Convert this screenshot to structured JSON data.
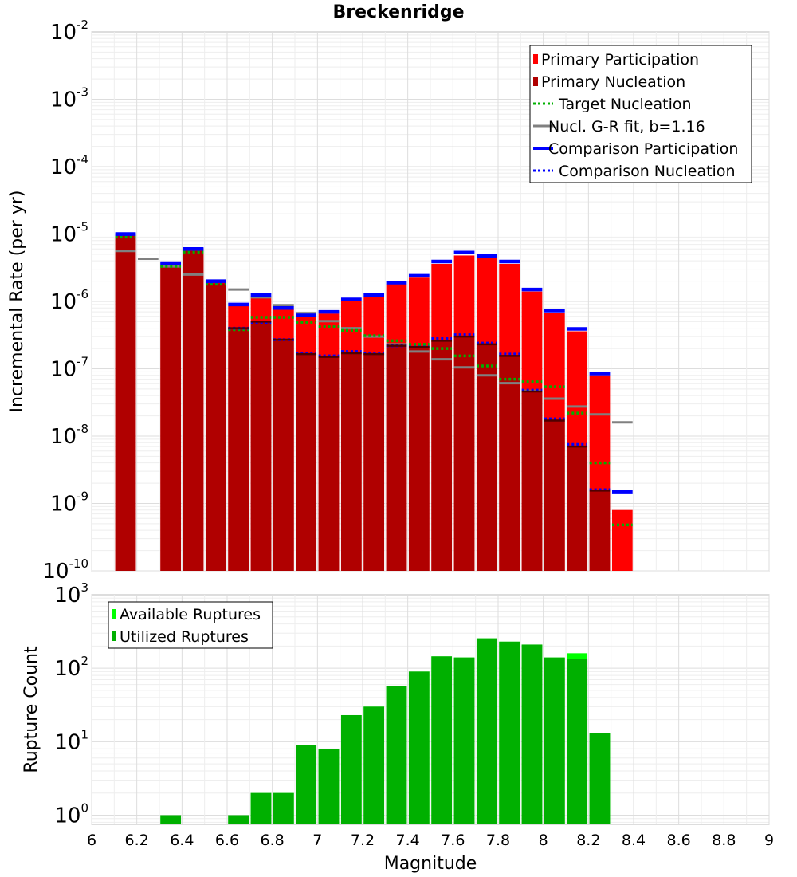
{
  "chart_data": [
    {
      "type": "bar",
      "title": "Breckenridge",
      "ylabel": "Incremental Rate (per yr)",
      "xlabel": "",
      "yscale": "log",
      "ylim": [
        1e-10,
        0.01
      ],
      "xlim": [
        6.0,
        9.0
      ],
      "grid": true,
      "bin_width": 0.1,
      "y_tick_labels": [
        {
          "value": 1e-10,
          "base": "10",
          "exp": "-10"
        },
        {
          "value": 1e-09,
          "base": "10",
          "exp": "-9"
        },
        {
          "value": 1e-08,
          "base": "10",
          "exp": "-8"
        },
        {
          "value": 1e-07,
          "base": "10",
          "exp": "-7"
        },
        {
          "value": 1e-06,
          "base": "10",
          "exp": "-6"
        },
        {
          "value": 1e-05,
          "base": "10",
          "exp": "-5"
        },
        {
          "value": 0.0001,
          "base": "10",
          "exp": "-4"
        },
        {
          "value": 0.001,
          "base": "10",
          "exp": "-3"
        },
        {
          "value": 0.01,
          "base": "10",
          "exp": "-2"
        }
      ],
      "legend": {
        "placement": "top-right",
        "entries": [
          {
            "label": "Primary Participation",
            "color": "#ff0000",
            "style": "bar"
          },
          {
            "label": "Primary Nucleation",
            "color": "#b00000",
            "style": "bar"
          },
          {
            "label": "Target Nucleation",
            "color": "#00b000",
            "style": "dotted"
          },
          {
            "label": "Nucl. G-R fit, b=1.16",
            "color": "#808080",
            "style": "solid"
          },
          {
            "label": "Comparison Participation",
            "color": "#0000ff",
            "style": "thick"
          },
          {
            "label": "Comparison Nucleation",
            "color": "#0000ff",
            "style": "dotted"
          }
        ]
      },
      "series": [
        {
          "name": "Primary Participation",
          "color": "#ff0000",
          "points": [
            [
              6.15,
              9.5e-06
            ],
            [
              6.35,
              3.5e-06
            ],
            [
              6.45,
              5.8e-06
            ],
            [
              6.55,
              1.9e-06
            ],
            [
              6.65,
              8.5e-07
            ],
            [
              6.75,
              1.15e-06
            ],
            [
              6.85,
              7.6e-07
            ],
            [
              6.95,
              5.8e-07
            ],
            [
              7.05,
              6.6e-07
            ],
            [
              7.15,
              1e-06
            ],
            [
              7.25,
              1.18e-06
            ],
            [
              7.35,
              1.8e-06
            ],
            [
              7.45,
              2.25e-06
            ],
            [
              7.55,
              3.6e-06
            ],
            [
              7.65,
              4.8e-06
            ],
            [
              7.75,
              4.4e-06
            ],
            [
              7.85,
              3.6e-06
            ],
            [
              7.95,
              1.4e-06
            ],
            [
              8.05,
              6.8e-07
            ],
            [
              8.15,
              3.6e-07
            ],
            [
              8.25,
              8e-08
            ],
            [
              8.35,
              8e-10
            ]
          ]
        },
        {
          "name": "Primary Nucleation",
          "color": "#b00000",
          "points": [
            [
              6.15,
              9.5e-06
            ],
            [
              6.35,
              3.4e-06
            ],
            [
              6.45,
              5.6e-06
            ],
            [
              6.55,
              1.85e-06
            ],
            [
              6.65,
              4e-07
            ],
            [
              6.75,
              5e-07
            ],
            [
              6.85,
              2.7e-07
            ],
            [
              6.95,
              1.65e-07
            ],
            [
              7.05,
              1.5e-07
            ],
            [
              7.15,
              1.7e-07
            ],
            [
              7.25,
              1.65e-07
            ],
            [
              7.35,
              2.2e-07
            ],
            [
              7.45,
              2.1e-07
            ],
            [
              7.55,
              2.6e-07
            ],
            [
              7.65,
              3e-07
            ],
            [
              7.75,
              2.3e-07
            ],
            [
              7.85,
              1.55e-07
            ],
            [
              7.95,
              4.6e-08
            ],
            [
              8.05,
              1.7e-08
            ],
            [
              8.15,
              7e-09
            ],
            [
              8.25,
              1.55e-09
            ]
          ]
        },
        {
          "name": "Target Nucleation",
          "color": "#00b000",
          "points": [
            [
              6.15,
              9e-06
            ],
            [
              6.35,
              3.3e-06
            ],
            [
              6.45,
              5.4e-06
            ],
            [
              6.55,
              1.8e-06
            ],
            [
              6.65,
              3.8e-07
            ],
            [
              6.75,
              5.8e-07
            ],
            [
              6.85,
              5.8e-07
            ],
            [
              6.95,
              4.9e-07
            ],
            [
              7.05,
              4.2e-07
            ],
            [
              7.15,
              3.7e-07
            ],
            [
              7.25,
              3.1e-07
            ],
            [
              7.35,
              2.6e-07
            ],
            [
              7.45,
              2.3e-07
            ],
            [
              7.55,
              2e-07
            ],
            [
              7.65,
              1.55e-07
            ],
            [
              7.75,
              1.1e-07
            ],
            [
              7.85,
              7e-08
            ],
            [
              7.95,
              6.4e-08
            ],
            [
              8.05,
              5.4e-08
            ],
            [
              8.15,
              2.2e-08
            ],
            [
              8.25,
              4e-09
            ],
            [
              8.35,
              4.8e-10
            ]
          ]
        },
        {
          "name": "Nucl. G-R fit, b=1.16",
          "color": "#808080",
          "points": [
            [
              6.15,
              5.6e-06
            ],
            [
              6.25,
              4.3e-06
            ],
            [
              6.35,
              3.3e-06
            ],
            [
              6.45,
              2.5e-06
            ],
            [
              6.55,
              2e-06
            ],
            [
              6.65,
              1.5e-06
            ],
            [
              6.75,
              1.15e-06
            ],
            [
              6.85,
              8.8e-07
            ],
            [
              6.95,
              6.7e-07
            ],
            [
              7.05,
              5.1e-07
            ],
            [
              7.15,
              4e-07
            ],
            [
              7.25,
              3e-07
            ],
            [
              7.35,
              2.3e-07
            ],
            [
              7.45,
              1.8e-07
            ],
            [
              7.55,
              1.38e-07
            ],
            [
              7.65,
              1.05e-07
            ],
            [
              7.75,
              8e-08
            ],
            [
              7.85,
              6.1e-08
            ],
            [
              7.95,
              4.7e-08
            ],
            [
              8.05,
              3.6e-08
            ],
            [
              8.15,
              2.75e-08
            ],
            [
              8.25,
              2.1e-08
            ],
            [
              8.35,
              1.6e-08
            ]
          ]
        },
        {
          "name": "Comparison Participation",
          "color": "#0000ff",
          "points": [
            [
              6.15,
              1e-05
            ],
            [
              6.35,
              3.7e-06
            ],
            [
              6.45,
              6e-06
            ],
            [
              6.55,
              2e-06
            ],
            [
              6.65,
              9e-07
            ],
            [
              6.75,
              1.25e-06
            ],
            [
              6.85,
              8e-07
            ],
            [
              6.95,
              6.2e-07
            ],
            [
              7.05,
              7e-07
            ],
            [
              7.15,
              1.07e-06
            ],
            [
              7.25,
              1.25e-06
            ],
            [
              7.35,
              1.9e-06
            ],
            [
              7.45,
              2.4e-06
            ],
            [
              7.55,
              3.9e-06
            ],
            [
              7.65,
              5.3e-06
            ],
            [
              7.75,
              4.7e-06
            ],
            [
              7.85,
              3.9e-06
            ],
            [
              7.95,
              1.5e-06
            ],
            [
              8.05,
              7.3e-07
            ],
            [
              8.15,
              3.9e-07
            ],
            [
              8.25,
              8.5e-08
            ],
            [
              8.35,
              1.5e-09
            ]
          ]
        },
        {
          "name": "Comparison Nucleation",
          "color": "#0000ff",
          "points": [
            [
              6.15,
              9.8e-06
            ],
            [
              6.35,
              3.6e-06
            ],
            [
              6.45,
              5.9e-06
            ],
            [
              6.55,
              1.95e-06
            ],
            [
              6.65,
              4e-07
            ],
            [
              6.75,
              4.8e-07
            ],
            [
              6.85,
              2.7e-07
            ],
            [
              6.95,
              1.7e-07
            ],
            [
              7.05,
              1.55e-07
            ],
            [
              7.15,
              1.8e-07
            ],
            [
              7.25,
              1.7e-07
            ],
            [
              7.35,
              2.2e-07
            ],
            [
              7.45,
              2.1e-07
            ],
            [
              7.55,
              2.8e-07
            ],
            [
              7.65,
              3.2e-07
            ],
            [
              7.75,
              2.4e-07
            ],
            [
              7.85,
              1.65e-07
            ],
            [
              7.95,
              4.8e-08
            ],
            [
              8.05,
              1.8e-08
            ],
            [
              8.15,
              7.5e-09
            ],
            [
              8.25,
              1.6e-09
            ]
          ]
        }
      ]
    },
    {
      "type": "bar",
      "title": "",
      "ylabel": "Rupture Count",
      "xlabel": "Magnitude",
      "yscale": "log",
      "ylim": [
        0.75,
        1000
      ],
      "xlim": [
        6.0,
        9.0
      ],
      "grid": true,
      "bin_width": 0.1,
      "y_tick_labels": [
        {
          "value": 1,
          "base": "10",
          "exp": "0"
        },
        {
          "value": 10,
          "base": "10",
          "exp": "1"
        },
        {
          "value": 100,
          "base": "10",
          "exp": "2"
        },
        {
          "value": 1000,
          "base": "10",
          "exp": "3"
        }
      ],
      "x_tick_labels": [
        "6",
        "6.2",
        "6.4",
        "6.6",
        "6.8",
        "7",
        "7.2",
        "7.4",
        "7.6",
        "7.8",
        "8",
        "8.2",
        "8.4",
        "8.6",
        "8.8",
        "9"
      ],
      "x_tick_values": [
        6.0,
        6.2,
        6.4,
        6.6,
        6.8,
        7.0,
        7.2,
        7.4,
        7.6,
        7.8,
        8.0,
        8.2,
        8.4,
        8.6,
        8.8,
        9.0
      ],
      "legend": {
        "placement": "top-left",
        "entries": [
          {
            "label": "Available Ruptures",
            "color": "#00ff00"
          },
          {
            "label": "Utilized Ruptures",
            "color": "#00b000"
          }
        ]
      },
      "series": [
        {
          "name": "Available Ruptures",
          "color": "#00ff00",
          "points": [
            [
              6.35,
              1
            ],
            [
              6.65,
              1
            ],
            [
              6.75,
              2
            ],
            [
              6.85,
              2
            ],
            [
              6.95,
              9
            ],
            [
              7.05,
              8
            ],
            [
              7.15,
              23
            ],
            [
              7.25,
              30
            ],
            [
              7.35,
              57
            ],
            [
              7.45,
              90
            ],
            [
              7.55,
              145
            ],
            [
              7.65,
              140
            ],
            [
              7.75,
              255
            ],
            [
              7.85,
              230
            ],
            [
              7.95,
              210
            ],
            [
              8.05,
              140
            ],
            [
              8.15,
              160
            ],
            [
              8.25,
              13
            ]
          ]
        },
        {
          "name": "Utilized Ruptures",
          "color": "#00b000",
          "points": [
            [
              6.35,
              1
            ],
            [
              6.65,
              1
            ],
            [
              6.75,
              2
            ],
            [
              6.85,
              2
            ],
            [
              6.95,
              9
            ],
            [
              7.05,
              8
            ],
            [
              7.15,
              23
            ],
            [
              7.25,
              30
            ],
            [
              7.35,
              57
            ],
            [
              7.45,
              90
            ],
            [
              7.55,
              145
            ],
            [
              7.65,
              140
            ],
            [
              7.75,
              255
            ],
            [
              7.85,
              230
            ],
            [
              7.95,
              210
            ],
            [
              8.05,
              140
            ],
            [
              8.15,
              135
            ],
            [
              8.25,
              13
            ]
          ]
        }
      ]
    }
  ]
}
